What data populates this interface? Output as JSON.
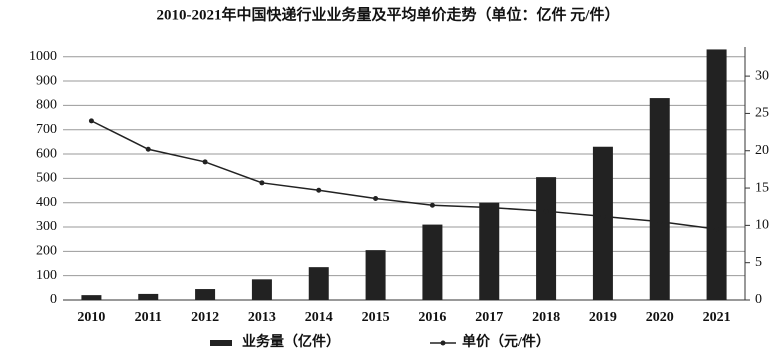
{
  "chart_data": {
    "type": "bar-line",
    "title": "2010-2021年中国快递行业业务量及平均单价走势（单位：亿件 元/件）",
    "categories": [
      "2010",
      "2011",
      "2012",
      "2013",
      "2014",
      "2015",
      "2016",
      "2017",
      "2018",
      "2019",
      "2020",
      "2021"
    ],
    "series": [
      {
        "name": "业务量（亿件）",
        "type": "bar",
        "color": "#222222",
        "values": [
          20,
          25,
          45,
          85,
          135,
          205,
          310,
          400,
          505,
          630,
          830,
          1030
        ]
      },
      {
        "name": "单价（元/件）",
        "type": "line",
        "axis": "y2",
        "color": "#222222",
        "values": [
          24,
          20.2,
          18.5,
          15.7,
          14.7,
          13.6,
          12.7,
          12.4,
          11.9,
          11.2,
          10.5,
          9.5
        ]
      }
    ],
    "ylim": [
      0,
      1040
    ],
    "yticks": [
      0,
      100,
      200,
      300,
      400,
      500,
      600,
      700,
      800,
      900,
      1000
    ],
    "y2lim": [
      0,
      33.9
    ],
    "y2ticks": [
      0,
      5,
      10,
      15,
      20,
      25,
      30
    ],
    "grid": true,
    "legend": "bottom"
  }
}
